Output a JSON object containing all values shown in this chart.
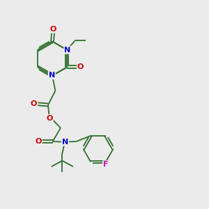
{
  "background_color": "#ebebeb",
  "bond_color": "#2d6e2d",
  "N_color": "#0000cc",
  "O_color": "#cc0000",
  "F_color": "#cc00cc",
  "figsize": [
    3.0,
    3.0
  ],
  "dpi": 100,
  "xlim": [
    0,
    10
  ],
  "ylim": [
    0,
    10
  ]
}
